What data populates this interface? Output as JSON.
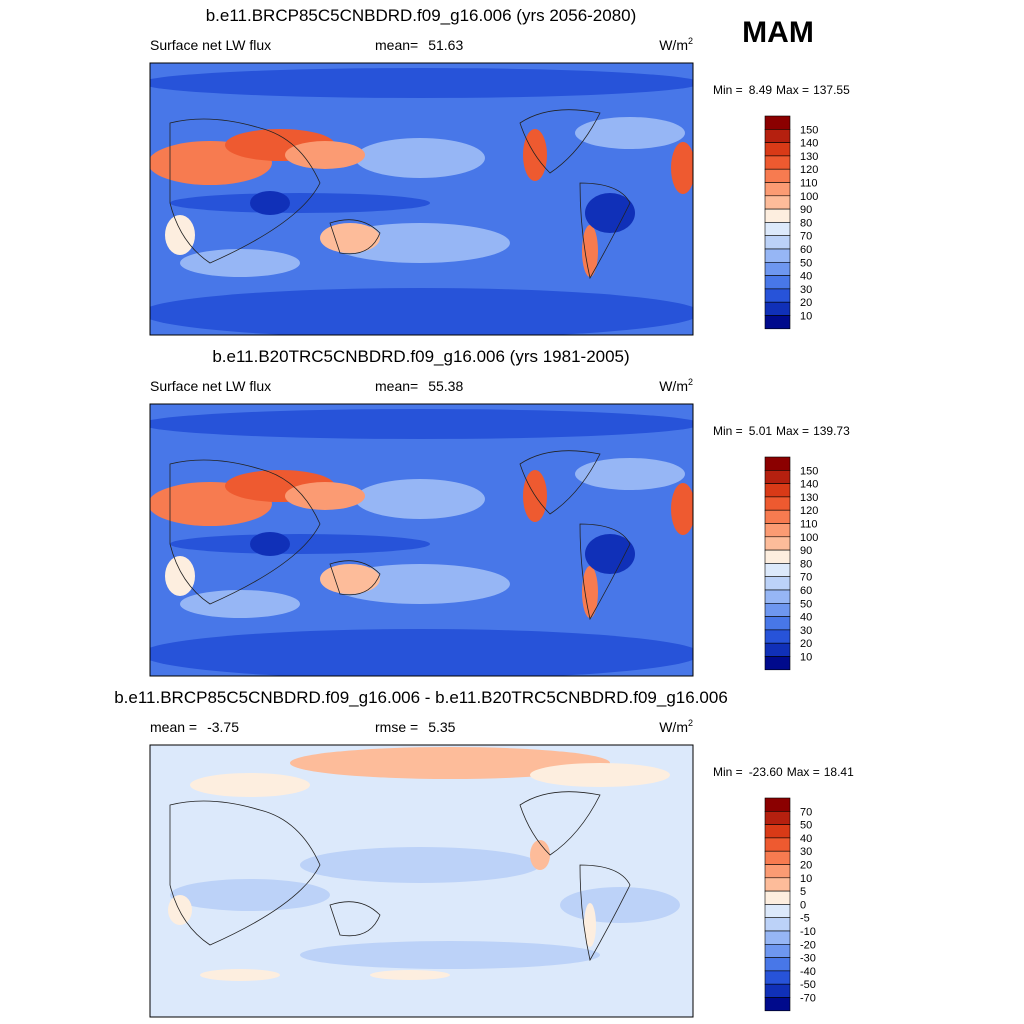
{
  "season": "MAM",
  "panels": [
    {
      "title": "b.e11.BRCP85C5CNBDRD.f09_g16.006 (yrs 2056-2080)",
      "left": {
        "label": "Surface net LW flux"
      },
      "center": {
        "label": "mean=",
        "value": "51.63"
      },
      "units": "W/m",
      "units_sup": "2",
      "min_label": "Min =",
      "min_value": "8.49",
      "max_label": "Max =",
      "max_value": "137.55",
      "colorbar": {
        "labels": [
          "150",
          "140",
          "130",
          "120",
          "110",
          "100",
          "90",
          "80",
          "70",
          "60",
          "50",
          "40",
          "30",
          "20",
          "10"
        ],
        "colors": [
          "#8b0000",
          "#b5200f",
          "#d93a17",
          "#ee5a30",
          "#f77b50",
          "#fb9b73",
          "#fdbc9a",
          "#fdeedf",
          "#dce9fb",
          "#bcd2f8",
          "#96b6f5",
          "#6e97f0",
          "#4877e8",
          "#2753d9",
          "#1030b8",
          "#000a8c"
        ]
      }
    },
    {
      "title": "b.e11.B20TRC5CNBDRD.f09_g16.006 (yrs 1981-2005)",
      "left": {
        "label": "Surface net LW flux"
      },
      "center": {
        "label": "mean=",
        "value": "55.38"
      },
      "units": "W/m",
      "units_sup": "2",
      "min_label": "Min =",
      "min_value": "5.01",
      "max_label": "Max =",
      "max_value": "139.73",
      "colorbar": {
        "labels": [
          "150",
          "140",
          "130",
          "120",
          "110",
          "100",
          "90",
          "80",
          "70",
          "60",
          "50",
          "40",
          "30",
          "20",
          "10"
        ],
        "colors": [
          "#8b0000",
          "#b5200f",
          "#d93a17",
          "#ee5a30",
          "#f77b50",
          "#fb9b73",
          "#fdbc9a",
          "#fdeedf",
          "#dce9fb",
          "#bcd2f8",
          "#96b6f5",
          "#6e97f0",
          "#4877e8",
          "#2753d9",
          "#1030b8",
          "#000a8c"
        ]
      }
    },
    {
      "title": "b.e11.BRCP85C5CNBDRD.f09_g16.006 - b.e11.B20TRC5CNBDRD.f09_g16.006",
      "left": {
        "label": "mean =",
        "value": "-3.75"
      },
      "center": {
        "label": "rmse =",
        "value": "5.35"
      },
      "units": "W/m",
      "units_sup": "2",
      "min_label": "Min =",
      "min_value": "-23.60",
      "max_label": "Max =",
      "max_value": "18.41",
      "colorbar": {
        "labels": [
          "70",
          "50",
          "40",
          "30",
          "20",
          "10",
          "5",
          "0",
          "-5",
          "-10",
          "-20",
          "-30",
          "-40",
          "-50",
          "-70"
        ],
        "colors": [
          "#8b0000",
          "#b5200f",
          "#d93a17",
          "#ee5a30",
          "#f77b50",
          "#fb9b73",
          "#fdbc9a",
          "#fdeedf",
          "#dce9fb",
          "#bcd2f8",
          "#96b6f5",
          "#6e97f0",
          "#4877e8",
          "#2753d9",
          "#1030b8",
          "#000a8c"
        ]
      }
    }
  ]
}
